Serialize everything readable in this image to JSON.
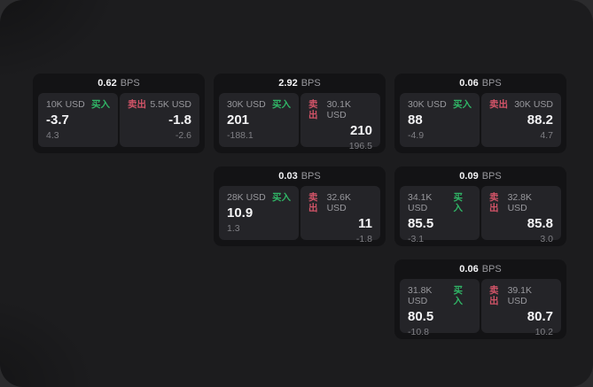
{
  "labels": {
    "buy": "买入",
    "sell": "卖出",
    "bps_unit": "BPS"
  },
  "colors": {
    "buy_green": "#30b566",
    "sell_red": "#d25468",
    "window_bg": "#1c1c1e",
    "card_bg": "#131315",
    "tile_bg": "#242428"
  },
  "cards": [
    {
      "bps": "0.62",
      "buy": {
        "amount": "10K USD",
        "price": "-3.7",
        "delta": "4.3"
      },
      "sell": {
        "amount": "5.5K USD",
        "price": "-1.8",
        "delta": "-2.6"
      }
    },
    {
      "bps": "2.92",
      "buy": {
        "amount": "30K USD",
        "price": "201",
        "delta": "-188.1"
      },
      "sell": {
        "amount": "30.1K USD",
        "price": "210",
        "delta": "196.5"
      }
    },
    {
      "bps": "0.06",
      "buy": {
        "amount": "30K USD",
        "price": "88",
        "delta": "-4.9"
      },
      "sell": {
        "amount": "30K USD",
        "price": "88.2",
        "delta": "4.7"
      }
    },
    {
      "bps": "0.03",
      "buy": {
        "amount": "28K USD",
        "price": "10.9",
        "delta": "1.3"
      },
      "sell": {
        "amount": "32.6K USD",
        "price": "11",
        "delta": "-1.8"
      }
    },
    {
      "bps": "0.09",
      "buy": {
        "amount": "34.1K USD",
        "price": "85.5",
        "delta": "-3.1"
      },
      "sell": {
        "amount": "32.8K USD",
        "price": "85.8",
        "delta": "3.0"
      }
    },
    {
      "bps": "0.06",
      "buy": {
        "amount": "31.8K USD",
        "price": "80.5",
        "delta": "-10.8"
      },
      "sell": {
        "amount": "39.1K USD",
        "price": "80.7",
        "delta": "10.2"
      }
    }
  ]
}
